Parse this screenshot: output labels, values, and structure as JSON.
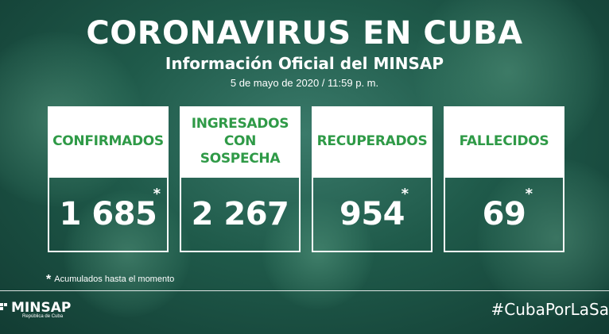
{
  "header": {
    "title": "CORONAVIRUS EN CUBA",
    "subtitle": "Información Oficial del MINSAP",
    "date": "5 de mayo de 2020 / 11:59 p. m."
  },
  "cards": [
    {
      "label": "CONFIRMADOS",
      "value": "1 685",
      "asterisk": "*"
    },
    {
      "label": "INGRESADOS CON SOSPECHA",
      "value": "2 267",
      "asterisk": ""
    },
    {
      "label": "RECUPERADOS",
      "value": "954",
      "asterisk": "*"
    },
    {
      "label": "FALLECIDOS",
      "value": "69",
      "asterisk": "*"
    }
  ],
  "footnote": {
    "asterisk": "*",
    "text": "Acumulados hasta el momento"
  },
  "footer": {
    "logo_name": "MINSAP",
    "logo_sub": "República de Cuba",
    "hashtag": "#CubaPorLaSa"
  },
  "colors": {
    "label_green": "#2f9a47",
    "background": "#1f5a4a",
    "text": "#ffffff"
  }
}
